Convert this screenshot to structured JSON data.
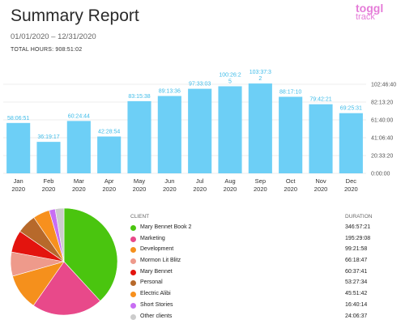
{
  "header": {
    "title": "Summary Report",
    "date_range": "01/01/2020 – 12/31/2020",
    "total_hours": "TOTAL HOURS: 908:51:02",
    "logo_line1": "toggl",
    "logo_line2": "track"
  },
  "chart_data": [
    {
      "type": "bar",
      "categories": [
        "Jan 2020",
        "Feb 2020",
        "Mar 2020",
        "Apr 2020",
        "May 2020",
        "Jun 2020",
        "Jul 2020",
        "Aug 2020",
        "Sep 2020",
        "Oct 2020",
        "Nov 2020",
        "Dec 2020"
      ],
      "month_labels": [
        "Jan",
        "Feb",
        "Mar",
        "Apr",
        "May",
        "Jun",
        "Jul",
        "Aug",
        "Sep",
        "Oct",
        "Nov",
        "Dec"
      ],
      "year_labels": [
        "2020",
        "2020",
        "2020",
        "2020",
        "2020",
        "2020",
        "2020",
        "2020",
        "2020",
        "2020",
        "2020",
        "2020"
      ],
      "values_hours": [
        58.11,
        36.32,
        60.41,
        42.48,
        83.26,
        89.23,
        97.55,
        100.44,
        103.63,
        88.29,
        79.71,
        69.43
      ],
      "data_labels": [
        "58:06:51",
        "36:19:17",
        "60:24:44",
        "42:28:54",
        "83:15:38",
        "89:13:36",
        "97:33:03",
        "100:26:25",
        "103:37:32",
        "88:17:10",
        "79:42:21",
        "69:25:31"
      ],
      "data_label_lines": [
        [
          "58:06:51"
        ],
        [
          "36:19:17"
        ],
        [
          "60:24:44"
        ],
        [
          "42:28:54"
        ],
        [
          "83:15:38"
        ],
        [
          "89:13:36"
        ],
        [
          "97:33:03"
        ],
        [
          "100:26:2",
          "5"
        ],
        [
          "103:37:3",
          "2"
        ],
        [
          "88:17:10"
        ],
        [
          "79:42:21"
        ],
        [
          "69:25:31"
        ]
      ],
      "y_ticks": [
        "102:46:40",
        "82:13:20",
        "61:40:00",
        "41:06:40",
        "20:33:20",
        "0:00:00"
      ],
      "y_tick_values": [
        102.78,
        82.22,
        61.67,
        41.11,
        20.56,
        0
      ],
      "ylim": [
        0,
        102.78
      ],
      "bar_color": "#6dcff6",
      "label_color": "#3dbbe8",
      "grid": true
    },
    {
      "type": "pie",
      "column_headers": {
        "client": "CLIENT",
        "duration": "DURATION"
      },
      "slices": [
        {
          "name": "Mary Bennet Book 2",
          "duration": "346:57:21",
          "hours": 346.96,
          "color": "#4ac50f"
        },
        {
          "name": "Marketing",
          "duration": "195:29:08",
          "hours": 195.49,
          "color": "#e8498a"
        },
        {
          "name": "Development",
          "duration": "99:21:58",
          "hours": 99.37,
          "color": "#f5901c"
        },
        {
          "name": "Mormon Lit Blitz",
          "duration": "66:18:47",
          "hours": 66.31,
          "color": "#ee9a8b"
        },
        {
          "name": "Mary Bennet",
          "duration": "60:37:41",
          "hours": 60.63,
          "color": "#e3140e"
        },
        {
          "name": "Personal",
          "duration": "53:27:34",
          "hours": 53.46,
          "color": "#b7692b"
        },
        {
          "name": "Electric Alibi",
          "duration": "45:51:42",
          "hours": 45.86,
          "color": "#f7901e"
        },
        {
          "name": "Short Stories",
          "duration": "16:40:14",
          "hours": 16.67,
          "color": "#c86ef3"
        },
        {
          "name": "Other clients",
          "duration": "24:06:37",
          "hours": 24.11,
          "color": "#cccccc"
        }
      ]
    }
  ]
}
